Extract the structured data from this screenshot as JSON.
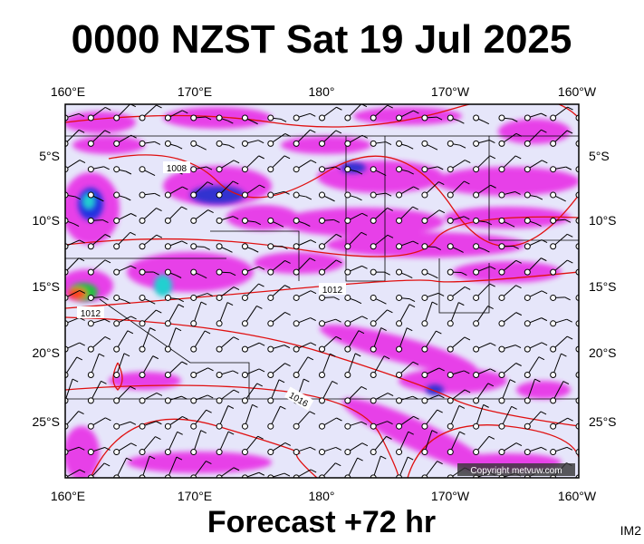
{
  "title": "0000 NZST Sat 19 Jul 2025",
  "map": {
    "top_labels": [
      "160°E",
      "170°E",
      "180°",
      "170°W",
      "160°W"
    ],
    "bottom_labels": [
      "160°E",
      "170°E",
      "180°",
      "170°W",
      "160°W"
    ],
    "left_labels": [
      "5°S",
      "10°S",
      "15°S",
      "20°S",
      "25°S"
    ],
    "right_labels": [
      "5°S",
      "10°S",
      "15°S",
      "20°S",
      "25°S"
    ],
    "isobar_labels": [
      "1008",
      "1012",
      "1012",
      "1016"
    ],
    "copyright": "Copyright metvuw.com"
  },
  "footer": {
    "forecast": "Forecast +72 hr",
    "code": "IM2"
  }
}
